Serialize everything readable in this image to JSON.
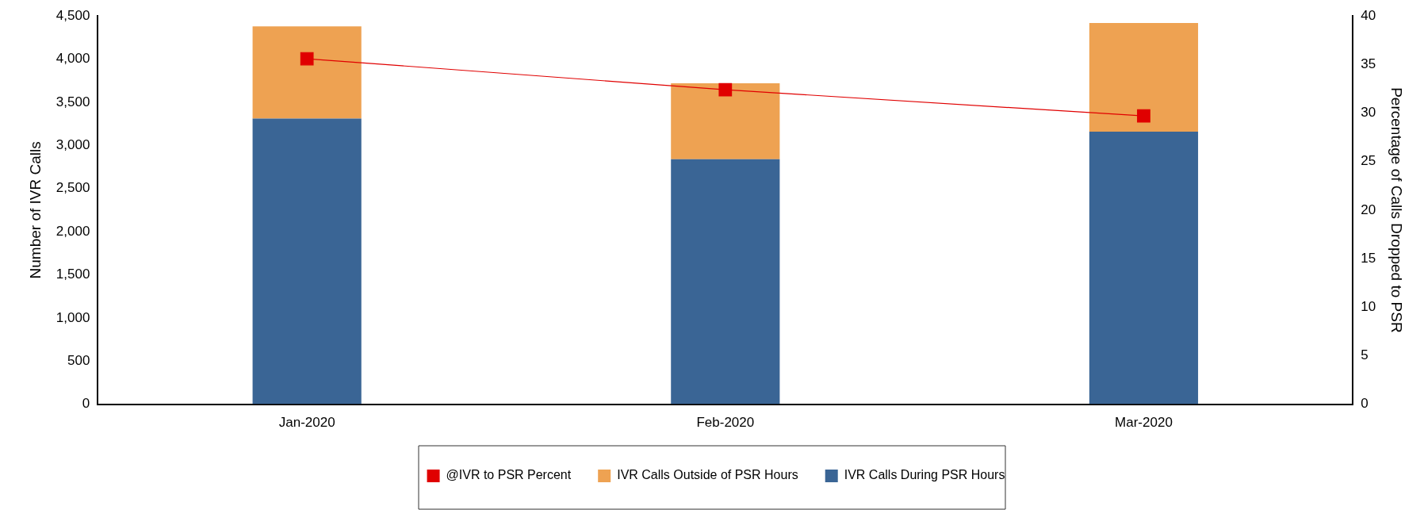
{
  "chart_data": {
    "type": "bar",
    "stacked": true,
    "xlabel": null,
    "ylabel": "Number of IVR Calls",
    "y2label": "Percentage of Calls Dropped to PSR",
    "categories": [
      "Jan-2020",
      "Feb-2020",
      "Mar-2020"
    ],
    "series": [
      {
        "name": "IVR Calls During PSR Hours",
        "color": "#3a6595",
        "values": [
          3310,
          2840,
          3160
        ]
      },
      {
        "name": "IVR Calls Outside of PSR Hours",
        "color": "#eea252",
        "values": [
          1070,
          880,
          1260
        ]
      },
      {
        "name": "@IVR to PSR Percent",
        "type": "line",
        "axis": "y2",
        "color": "#e00000",
        "values": [
          35.6,
          32.4,
          29.7
        ]
      }
    ],
    "ylim": [
      0,
      4500
    ],
    "yticks": [
      0,
      500,
      {
        "value": 1000,
        "label": "1,000"
      },
      {
        "value": 1500,
        "label": "1,500"
      },
      {
        "value": 2000,
        "label": "2,000"
      },
      {
        "value": 2500,
        "label": "2,500"
      },
      {
        "value": 3000,
        "label": "3,000"
      },
      {
        "value": 3500,
        "label": "3,500"
      },
      {
        "value": 4000,
        "label": "4,000"
      },
      {
        "value": 4500,
        "label": "4,500"
      }
    ],
    "y2lim": [
      0,
      40
    ],
    "y2ticks": [
      0,
      5,
      10,
      15,
      20,
      25,
      30,
      35,
      40
    ],
    "legend": "bottom",
    "marker": "square",
    "line_style": "solid"
  }
}
